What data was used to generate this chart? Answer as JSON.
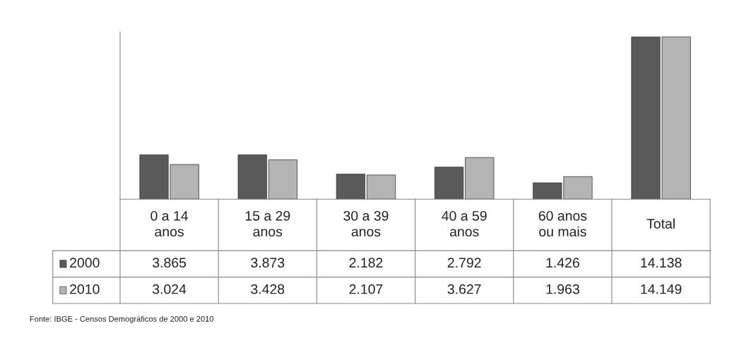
{
  "chart_data": {
    "type": "bar",
    "categories": [
      "0 a 14\nanos",
      "15 a 29\nanos",
      "30 a 39\nanos",
      "40 a 59\nanos",
      "60 anos\nou mais",
      "Total"
    ],
    "series": [
      {
        "name": "2000",
        "color": "#5a5a5a",
        "values": [
          3865,
          3873,
          2182,
          2792,
          1426,
          14138
        ],
        "value_labels": [
          "3.865",
          "3.873",
          "2.182",
          "2.792",
          "1.426",
          "14.138"
        ]
      },
      {
        "name": "2010",
        "color": "#b4b4b4",
        "values": [
          3024,
          3428,
          2107,
          3627,
          1963,
          14149
        ],
        "value_labels": [
          "3.024",
          "3.428",
          "2.107",
          "3.627",
          "1.963",
          "14.149"
        ]
      }
    ],
    "legend": "bottom left",
    "annotations": [
      "Fonte: IBGE - Censos Demográficos de 2000 e 2010"
    ]
  }
}
